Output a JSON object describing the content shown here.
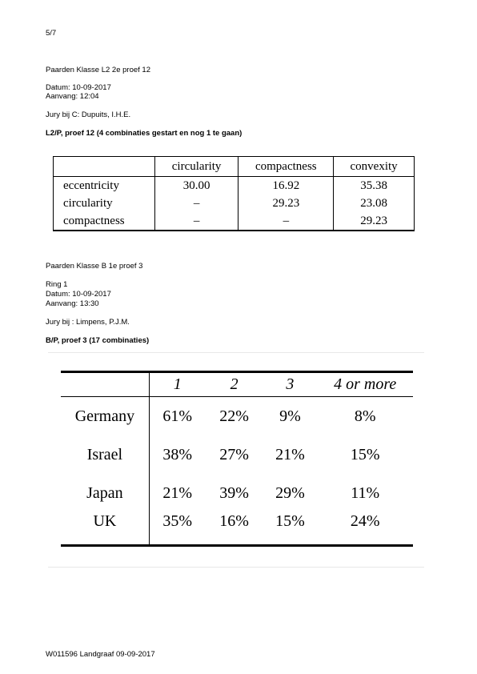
{
  "page_number": "5/7",
  "section1": {
    "title": "Paarden Klasse L2 2e proef 12",
    "datum": "Datum: 10-09-2017",
    "aanvang": "Aanvang: 12:04",
    "jury": "Jury bij C:  Dupuits, I.H.E.",
    "heading": "L2/P, proef 12 (4 combinaties gestart en nog 1 te gaan)"
  },
  "table1": {
    "headers": [
      "",
      "circularity",
      "compactness",
      "convexity"
    ],
    "rows": [
      [
        "eccentricity",
        "30.00",
        "16.92",
        "35.38"
      ],
      [
        "circularity",
        "–",
        "29.23",
        "23.08"
      ],
      [
        "compactness",
        "–",
        "–",
        "29.23"
      ]
    ]
  },
  "section2": {
    "title": "Paarden Klasse B 1e proef 3",
    "ring": "Ring 1",
    "datum": "Datum: 10-09-2017",
    "aanvang": "Aanvang: 13:30",
    "jury": "Jury bij :  Limpens, P.J.M.",
    "heading": "B/P, proef 3 (17 combinaties)"
  },
  "table2": {
    "headers": [
      "",
      "1",
      "2",
      "3",
      "4 or more"
    ],
    "rows": [
      [
        "Germany",
        "61%",
        "22%",
        "9%",
        "8%"
      ],
      [
        "Israel",
        "38%",
        "27%",
        "21%",
        "15%"
      ],
      [
        "Japan",
        "21%",
        "39%",
        "29%",
        "11%"
      ],
      [
        "UK",
        "35%",
        "16%",
        "15%",
        "24%"
      ]
    ]
  },
  "footer": "W011596 Landgraaf 09-09-2017"
}
